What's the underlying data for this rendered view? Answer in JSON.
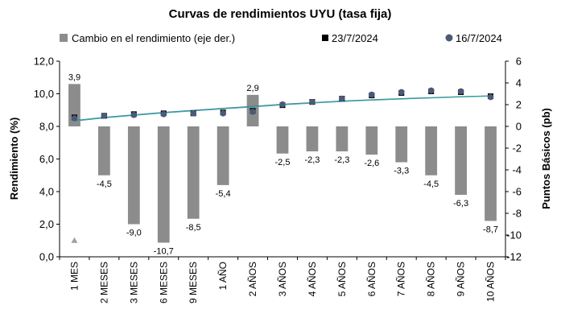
{
  "chart_data": {
    "type": "bar",
    "title": "Curvas de rendimientos UYU (tasa fija)",
    "categories": [
      "1 MES",
      "2 MESES",
      "3 MESES",
      "6 MESES",
      "9 MESES",
      "1 AÑO",
      "2 AÑOS",
      "3 AÑOS",
      "4 AÑOS",
      "5 AÑOS",
      "6 AÑOS",
      "7 AÑOS",
      "8 AÑOS",
      "9 AÑOS",
      "10 AÑOS"
    ],
    "series": [
      {
        "name": "Cambio en el rendimiento (eje der.)",
        "type": "bar",
        "axis": "right",
        "color": "#8c8c8c",
        "values": [
          3.9,
          -4.5,
          -9.0,
          -10.7,
          -8.5,
          -5.4,
          2.9,
          -2.5,
          -2.3,
          -2.3,
          -2.6,
          -3.3,
          -4.5,
          -6.3,
          -8.7
        ],
        "labels": [
          "3,9",
          "-4,5",
          "-9,0",
          "-10,7",
          "-8,5",
          "-5,4",
          "2,9",
          "-2,5",
          "-2,3",
          "-2,3",
          "-2,6",
          "-3,3",
          "-4,5",
          "-6,3",
          "-8,7"
        ]
      },
      {
        "name": "23/7/2024",
        "type": "scatter",
        "axis": "left",
        "marker": "square",
        "color": "#000000",
        "values": [
          8.55,
          8.65,
          8.75,
          8.8,
          8.8,
          8.85,
          8.95,
          9.3,
          9.5,
          9.7,
          9.9,
          10.05,
          10.15,
          10.1,
          9.85
        ]
      },
      {
        "name": "16/7/2024",
        "type": "scatter",
        "axis": "left",
        "marker": "circle",
        "color": "#4a5a78",
        "values": [
          8.5,
          8.65,
          8.7,
          8.75,
          8.8,
          8.8,
          8.9,
          9.35,
          9.5,
          9.7,
          9.95,
          10.1,
          10.2,
          10.15,
          9.8
        ]
      }
    ],
    "ylabel": "Rendimiento (%)",
    "y2label": "Puntos Básicos (pb)",
    "ylim": [
      0,
      12
    ],
    "y2lim": [
      -12,
      6
    ],
    "yticks": [
      "0,0",
      "2,0",
      "4,0",
      "6,0",
      "8,0",
      "10,0",
      "12,0"
    ],
    "y2ticks": [
      "-12",
      "-10",
      "-8",
      "-6",
      "-4",
      "-2",
      "0",
      "2",
      "4",
      "6"
    ],
    "trend_lines": [
      {
        "color": "#2e5e8c",
        "values": [
          8.35,
          8.55,
          8.7,
          8.85,
          8.98,
          9.1,
          9.22,
          9.35,
          9.45,
          9.55,
          9.63,
          9.7,
          9.76,
          9.82,
          9.87
        ]
      },
      {
        "color": "#3aa6a0",
        "values": [
          8.33,
          8.53,
          8.68,
          8.83,
          8.96,
          9.08,
          9.2,
          9.33,
          9.43,
          9.53,
          9.61,
          9.68,
          9.75,
          9.81,
          9.86
        ]
      }
    ],
    "extra_marker": {
      "category": "1 MES",
      "y": 1.0,
      "shape": "triangle",
      "color": "#a0a0a0"
    },
    "grid": false,
    "legend_position": "top"
  }
}
